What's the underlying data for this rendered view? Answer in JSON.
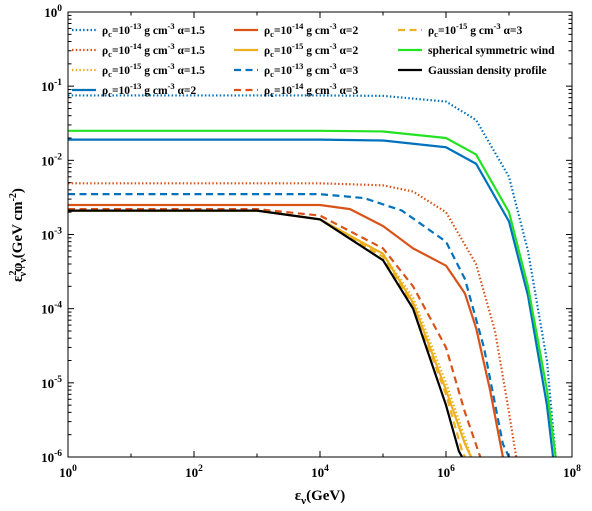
{
  "chart_data": {
    "type": "line",
    "title": "",
    "xlabel": "ε_ν(GeV)",
    "ylabel": "ε²_ν φ_ν (GeV cm⁻²)",
    "xscale": "log",
    "yscale": "log",
    "xlim": [
      1,
      100000000
    ],
    "ylim": [
      1e-06,
      1
    ],
    "grid": false,
    "legend_position": "top-left",
    "x_ticks": [
      {
        "value": 1,
        "base": "10",
        "exp": "0"
      },
      {
        "value": 100,
        "base": "10",
        "exp": "2"
      },
      {
        "value": 10000,
        "base": "10",
        "exp": "4"
      },
      {
        "value": 1000000,
        "base": "10",
        "exp": "6"
      },
      {
        "value": 100000000,
        "base": "10",
        "exp": "8"
      }
    ],
    "y_ticks": [
      {
        "value": 1,
        "base": "10",
        "exp": "0"
      },
      {
        "value": 0.1,
        "base": "10",
        "exp": "-1"
      },
      {
        "value": 0.01,
        "base": "10",
        "exp": "-2"
      },
      {
        "value": 0.001,
        "base": "10",
        "exp": "-3"
      },
      {
        "value": 0.0001,
        "base": "10",
        "exp": "-4"
      },
      {
        "value": 1e-05,
        "base": "10",
        "exp": "-5"
      },
      {
        "value": 1e-06,
        "base": "10",
        "exp": "-6"
      }
    ],
    "series": [
      {
        "name": "ρc=10⁻¹³ g cm⁻³ α=1.5",
        "rho_exp": "-13",
        "alpha": "1.5",
        "color": "#0072BD",
        "dash": "dot",
        "points": [
          [
            1,
            0.075
          ],
          [
            10000,
            0.075
          ],
          [
            100000,
            0.074
          ],
          [
            1000000,
            0.062
          ],
          [
            3000000,
            0.035
          ],
          [
            10000000,
            0.006
          ],
          [
            20000000,
            0.0006
          ],
          [
            40000000,
            2e-05
          ],
          [
            55000000,
            1e-06
          ]
        ]
      },
      {
        "name": "ρc=10⁻¹⁴ g cm⁻³ α=1.5",
        "rho_exp": "-14",
        "alpha": "1.5",
        "color": "#D95319",
        "dash": "dot",
        "points": [
          [
            1,
            0.0049
          ],
          [
            10000,
            0.0049
          ],
          [
            100000,
            0.0046
          ],
          [
            300000,
            0.0038
          ],
          [
            1000000,
            0.002
          ],
          [
            3000000,
            0.0004
          ],
          [
            6000000,
            5e-05
          ],
          [
            10000000,
            4e-06
          ],
          [
            13000000,
            1e-06
          ]
        ]
      },
      {
        "name": "ρc=10⁻¹⁵ g cm⁻³ α=1.5",
        "rho_exp": "-15",
        "alpha": "1.5",
        "color": "#EDB120",
        "dash": "dot",
        "points": [
          [
            1,
            0.0021
          ],
          [
            1000,
            0.0021
          ],
          [
            10000,
            0.0016
          ],
          [
            100000,
            0.00055
          ],
          [
            300000,
            0.00014
          ],
          [
            1000000,
            1e-05
          ],
          [
            2000000,
            1.8e-06
          ],
          [
            2500000,
            1e-06
          ]
        ]
      },
      {
        "name": "ρc=10⁻¹³ g cm⁻³ α=2",
        "rho_exp": "-13",
        "alpha": "2",
        "color": "#0072BD",
        "dash": "solid",
        "points": [
          [
            1,
            0.019
          ],
          [
            10000,
            0.019
          ],
          [
            100000,
            0.0185
          ],
          [
            1000000,
            0.015
          ],
          [
            3000000,
            0.009
          ],
          [
            10000000,
            0.0015
          ],
          [
            20000000,
            0.00015
          ],
          [
            40000000,
            5e-06
          ],
          [
            50000000,
            1e-06
          ]
        ]
      },
      {
        "name": "ρc=10⁻¹⁴ g cm⁻³ α=2",
        "rho_exp": "-14",
        "alpha": "2",
        "color": "#D95319",
        "dash": "solid",
        "points": [
          [
            1,
            0.0025
          ],
          [
            10000,
            0.0025
          ],
          [
            30000,
            0.0022
          ],
          [
            100000,
            0.0013
          ],
          [
            300000,
            0.00065
          ],
          [
            1000000,
            0.00038
          ],
          [
            2000000,
            0.00016
          ],
          [
            3000000,
            5.5e-05
          ],
          [
            5000000,
            8e-06
          ],
          [
            8000000,
            1e-06
          ]
        ]
      },
      {
        "name": "ρc=10⁻¹⁵ g cm⁻³ α=2",
        "rho_exp": "-15",
        "alpha": "2",
        "color": "#EDB120",
        "dash": "solid",
        "points": [
          [
            1,
            0.0021
          ],
          [
            1000,
            0.0021
          ],
          [
            10000,
            0.0016
          ],
          [
            100000,
            0.00055
          ],
          [
            300000,
            0.00012
          ],
          [
            1000000,
            8e-06
          ],
          [
            2000000,
            1.5e-06
          ],
          [
            2500000,
            1e-06
          ]
        ]
      },
      {
        "name": "ρc=10⁻¹³ g cm⁻³ α=3",
        "rho_exp": "-13",
        "alpha": "3",
        "color": "#0072BD",
        "dash": "dash",
        "points": [
          [
            1,
            0.0035
          ],
          [
            10000,
            0.0035
          ],
          [
            50000,
            0.0031
          ],
          [
            200000,
            0.0021
          ],
          [
            1000000,
            0.0008
          ],
          [
            2000000,
            0.00025
          ],
          [
            4000000,
            3e-05
          ],
          [
            8000000,
            1.5e-06
          ],
          [
            10000000,
            1e-06
          ]
        ]
      },
      {
        "name": "ρc=10⁻¹⁴ g cm⁻³ α=3",
        "rho_exp": "-14",
        "alpha": "3",
        "color": "#D95319",
        "dash": "dash",
        "points": [
          [
            1,
            0.0022
          ],
          [
            1000,
            0.0022
          ],
          [
            10000,
            0.0018
          ],
          [
            100000,
            0.00065
          ],
          [
            300000,
            0.0002
          ],
          [
            1000000,
            3e-05
          ],
          [
            2000000,
            4e-06
          ],
          [
            3500000,
            1e-06
          ]
        ]
      },
      {
        "name": "ρc=10⁻¹⁵ g cm⁻³ α=3",
        "rho_exp": "-15",
        "alpha": "3",
        "color": "#EDB120",
        "dash": "dash",
        "points": [
          [
            1,
            0.0021
          ],
          [
            1000,
            0.0021
          ],
          [
            10000,
            0.0016
          ],
          [
            100000,
            0.0005
          ],
          [
            300000,
            0.00011
          ],
          [
            1000000,
            7e-06
          ],
          [
            1800000,
            1.2e-06
          ],
          [
            2000000,
            1e-06
          ]
        ]
      },
      {
        "name": "spherical symmetric wind",
        "color": "#22E222",
        "dash": "solid",
        "points": [
          [
            1,
            0.025
          ],
          [
            10000,
            0.025
          ],
          [
            100000,
            0.0245
          ],
          [
            1000000,
            0.02
          ],
          [
            3000000,
            0.012
          ],
          [
            10000000,
            0.002
          ],
          [
            20000000,
            0.0002
          ],
          [
            40000000,
            8e-06
          ],
          [
            55000000,
            1e-06
          ]
        ]
      },
      {
        "name": "Gaussian density profile",
        "color": "#000000",
        "dash": "solid",
        "points": [
          [
            1,
            0.0021
          ],
          [
            1000,
            0.0021
          ],
          [
            10000,
            0.0016
          ],
          [
            100000,
            0.00045
          ],
          [
            300000,
            0.0001
          ],
          [
            1000000,
            5e-06
          ],
          [
            1600000,
            1.2e-06
          ],
          [
            1800000,
            1e-06
          ]
        ]
      }
    ],
    "legend_text": {
      "rho_prefix": "ρ",
      "rho_sub": "c",
      "eq_ten": "=10",
      "unit_g": " g cm",
      "unit_exp": "-3",
      "alpha_prefix": " α="
    }
  }
}
